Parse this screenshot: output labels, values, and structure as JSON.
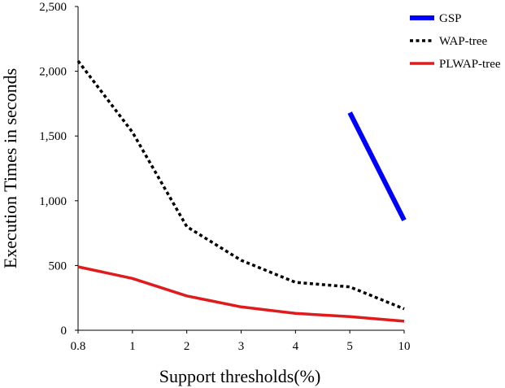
{
  "chart_data": {
    "type": "line",
    "title": "",
    "xlabel": "Support thresholds(%)",
    "ylabel": "Execution Times in seconds",
    "categories": [
      "0.8",
      "1",
      "2",
      "3",
      "4",
      "5",
      "10"
    ],
    "ylim": [
      0,
      2500
    ],
    "yticks": [
      0,
      500,
      1000,
      1500,
      2000,
      2500
    ],
    "ytick_labels": [
      "0",
      "500",
      "1,000",
      "1,500",
      "2,000",
      "2,500"
    ],
    "grid": false,
    "legend_position": "top-right",
    "series": [
      {
        "name": "GSP",
        "color": "#0000ff",
        "style": "solid-thick",
        "values": [
          null,
          null,
          null,
          null,
          null,
          1680,
          850
        ]
      },
      {
        "name": "WAP-tree",
        "color": "#000000",
        "style": "dotted",
        "values": [
          2080,
          1530,
          800,
          540,
          370,
          335,
          165
        ]
      },
      {
        "name": "PLWAP-tree",
        "color": "#e01b1b",
        "style": "solid",
        "values": [
          490,
          400,
          265,
          180,
          130,
          105,
          70
        ]
      }
    ]
  }
}
